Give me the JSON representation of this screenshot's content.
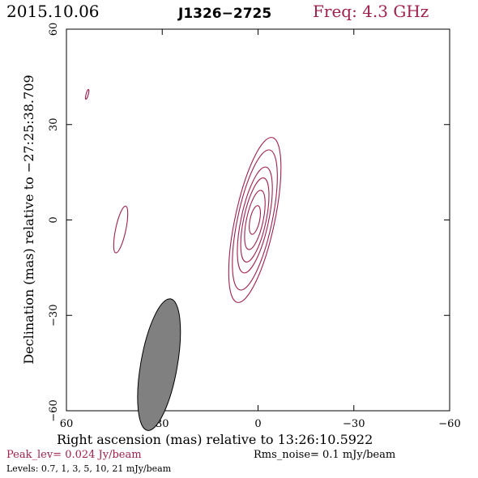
{
  "header": {
    "date": "2015.10.06",
    "source": "J1326−2725",
    "frequency": "Freq: 4.3 GHz",
    "frequency_color": "#a0204e"
  },
  "footer": {
    "peak": "Peak_lev=  0.024 Jy/beam",
    "peak_color": "#a0204e",
    "rms": "Rms_noise=  0.1 mJy/beam",
    "levels": "Levels: 0.7,   1,   3,   5,   10,   21 mJy/beam"
  },
  "chart_data": {
    "type": "contour",
    "xlabel": "Right ascension (mas) relative to 13:26:10.5922",
    "ylabel": "Declination (mas) relative to −27:25:38.709",
    "xlim": [
      60,
      -60
    ],
    "ylim": [
      -60,
      60
    ],
    "x_ticks": [
      60,
      30,
      0,
      -30,
      -60
    ],
    "x_tick_labels": [
      "60",
      "30",
      "0",
      "−30",
      "−60"
    ],
    "y_ticks": [
      -60,
      -30,
      0,
      30,
      60
    ],
    "y_tick_labels": [
      "−60",
      "−30",
      "0",
      "30",
      "60"
    ],
    "contour_color": "#a0204e",
    "contour_levels_mJy": [
      0.7,
      1,
      3,
      5,
      10,
      21
    ],
    "components": [
      {
        "center": [
          1,
          0
        ],
        "contours": [
          {
            "level": 0.7,
            "semi_major": 26.5,
            "semi_minor": 6.2,
            "pa_deg": 12
          },
          {
            "level": 1,
            "semi_major": 22.5,
            "semi_minor": 5.4,
            "pa_deg": 12
          },
          {
            "level": 3,
            "semi_major": 17.0,
            "semi_minor": 4.3,
            "pa_deg": 12
          },
          {
            "level": 5,
            "semi_major": 13.5,
            "semi_minor": 3.5,
            "pa_deg": 12
          },
          {
            "level": 10,
            "semi_major": 9.5,
            "semi_minor": 2.6,
            "pa_deg": 12
          },
          {
            "level": 21,
            "semi_major": 4.6,
            "semi_minor": 1.5,
            "pa_deg": 12
          }
        ]
      },
      {
        "center": [
          43,
          -3
        ],
        "contours": [
          {
            "level": 0.7,
            "semi_major": 7.5,
            "semi_minor": 1.6,
            "pa_deg": 12
          }
        ]
      },
      {
        "center": [
          53.5,
          39.5
        ],
        "contours": [
          {
            "level": 0.7,
            "semi_major": 1.6,
            "semi_minor": 0.35,
            "pa_deg": 15
          }
        ]
      }
    ],
    "beam": {
      "center": [
        31,
        -45.5
      ],
      "semi_major": 10.5,
      "semi_minor": 2.6,
      "pa_deg": 10,
      "color": "#808080"
    }
  }
}
